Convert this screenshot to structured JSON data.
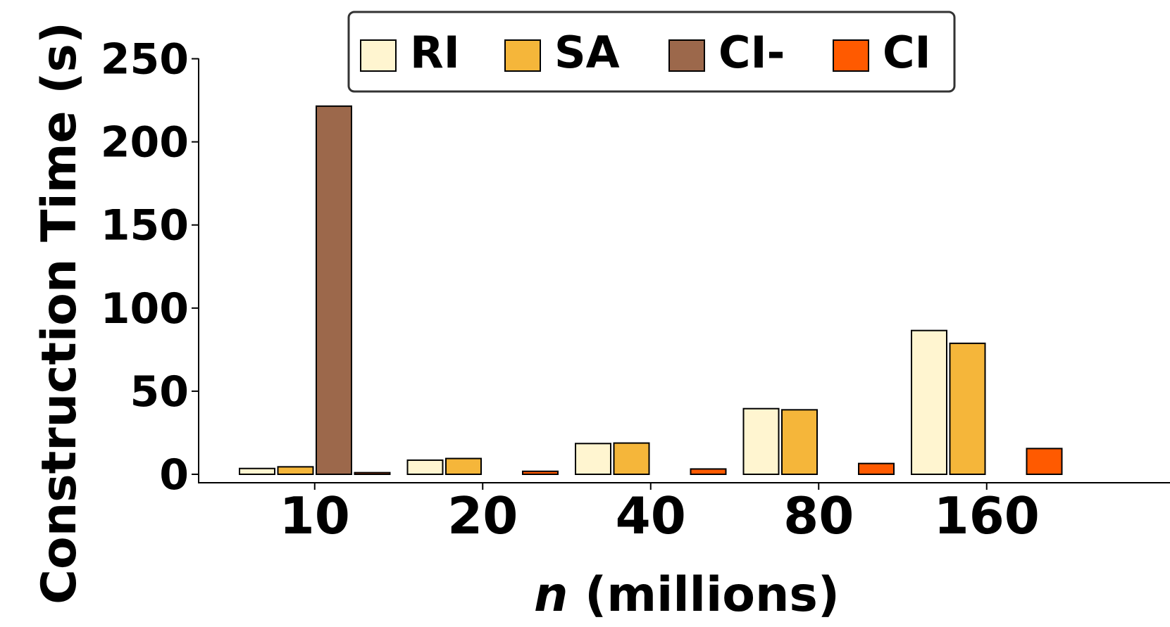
{
  "chart_data": {
    "type": "bar",
    "xlabel_italic": "n",
    "xlabel_rest": " (millions)",
    "ylabel": "Construction Time (s)",
    "categories": [
      "10",
      "20",
      "40",
      "80",
      "160"
    ],
    "ylim": [
      0,
      255
    ],
    "yticks": [
      "0",
      "50",
      "100",
      "150",
      "200",
      "250"
    ],
    "ytick_values": [
      0,
      50,
      100,
      150,
      200,
      250
    ],
    "grid": false,
    "legend_position": "top",
    "series": [
      {
        "name": "RI",
        "color": "#FFF5D0",
        "values": [
          3.5,
          8.5,
          18.5,
          39.5,
          86.5
        ]
      },
      {
        "name": "SA",
        "color": "#F5B63A",
        "values": [
          4.5,
          9.5,
          18.8,
          38.8,
          78.8
        ]
      },
      {
        "name": "CI-",
        "color": "#9C684B",
        "values": [
          221.5,
          null,
          null,
          null,
          null
        ]
      },
      {
        "name": "CI",
        "color": "#FF5A00",
        "values": [
          1.0,
          1.8,
          3.2,
          6.5,
          15.5
        ]
      }
    ]
  }
}
